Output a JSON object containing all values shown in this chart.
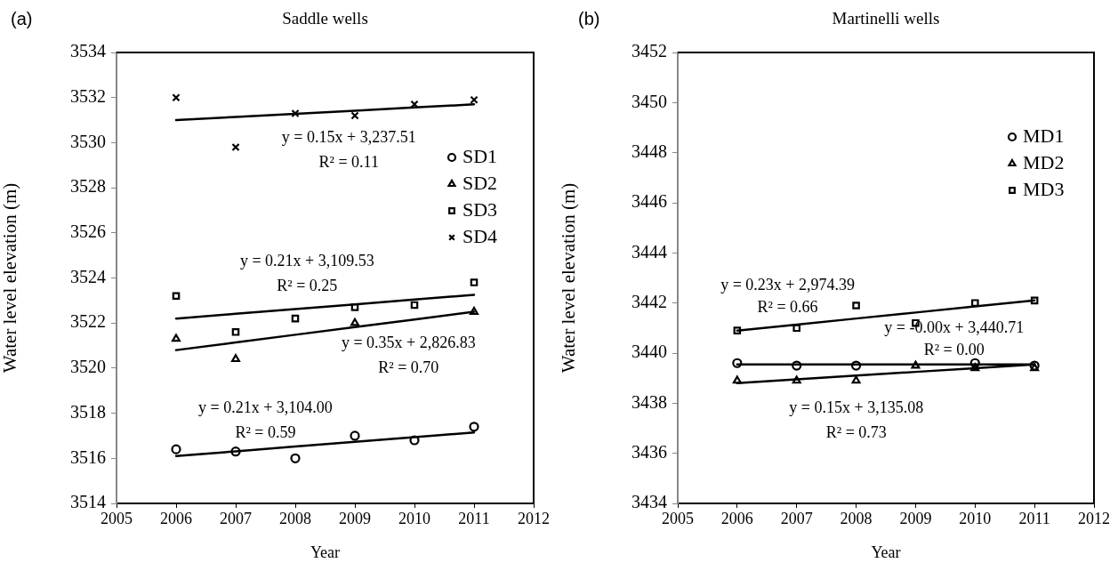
{
  "chart_data": [
    {
      "type": "scatter",
      "title": "Saddle wells",
      "xlabel": "Year",
      "ylabel": "Water level elevation (m)",
      "x": [
        2006,
        2007,
        2008,
        2009,
        2010,
        2011
      ],
      "xlim": [
        2005,
        2012
      ],
      "xticks": [
        2005,
        2006,
        2007,
        2008,
        2009,
        2010,
        2011,
        2012
      ],
      "ylim": [
        3514,
        3534
      ],
      "yticks": [
        3514,
        3516,
        3518,
        3520,
        3522,
        3524,
        3526,
        3528,
        3530,
        3532,
        3534
      ],
      "grid": false,
      "legend": "top right",
      "series": [
        {
          "name": "SD1",
          "color": "#000000",
          "marker": "circle",
          "values": [
            3516.4,
            3516.3,
            3516.0,
            3517.0,
            3516.8,
            3517.4
          ]
        },
        {
          "name": "SD2",
          "color": "#000000",
          "marker": "triangle",
          "values": [
            3521.3,
            3520.4,
            null,
            3522.0,
            null,
            3522.5
          ]
        },
        {
          "name": "SD3",
          "color": "#000000",
          "marker": "square",
          "values": [
            3523.2,
            3521.6,
            3522.2,
            3522.7,
            3522.8,
            3523.8
          ]
        },
        {
          "name": "SD4",
          "color": "#000000",
          "marker": "cross",
          "values": [
            3532.0,
            3529.8,
            3531.3,
            3531.2,
            3531.7,
            3531.9
          ]
        },
        {
          "type": "line",
          "color": "#000000",
          "marker": "none",
          "values": [
            3516.1,
            3516.31,
            3516.52,
            3516.73,
            3516.94,
            3517.15
          ]
        },
        {
          "type": "line",
          "color": "#000000",
          "marker": "none",
          "values": [
            3520.8,
            3521.14,
            3521.48,
            3521.82,
            3522.16,
            3522.5
          ]
        },
        {
          "type": "line",
          "color": "#000000",
          "marker": "none",
          "values": [
            3522.2,
            3522.41,
            3522.62,
            3522.83,
            3523.04,
            3523.25
          ]
        },
        {
          "type": "line",
          "color": "#000000",
          "marker": "none",
          "values": [
            3531.0,
            3531.14,
            3531.28,
            3531.42,
            3531.56,
            3531.7
          ]
        }
      ],
      "annotations": [
        "(a)",
        "y = 0.15x + 3,237.51",
        "R² = 0.11",
        "y = 0.21x + 3,109.53",
        "R² = 0.25",
        "y = 0.35x + 2,826.83",
        "R² = 0.70",
        "y = 0.21x + 3,104.00",
        "R² = 0.59"
      ]
    },
    {
      "type": "scatter",
      "title": "Martinelli wells",
      "xlabel": "Year",
      "ylabel": "Water level elevation (m)",
      "x": [
        2006,
        2007,
        2008,
        2009,
        2010,
        2011
      ],
      "xlim": [
        2005,
        2012
      ],
      "xticks": [
        2005,
        2006,
        2007,
        2008,
        2009,
        2010,
        2011,
        2012
      ],
      "ylim": [
        3434,
        3452
      ],
      "yticks": [
        3434,
        3436,
        3438,
        3440,
        3442,
        3444,
        3446,
        3448,
        3450,
        3452
      ],
      "grid": false,
      "legend": "top right",
      "series": [
        {
          "name": "MD1",
          "color": "#000000",
          "marker": "circle",
          "values": [
            3439.6,
            3439.5,
            3439.5,
            null,
            3439.6,
            3439.5
          ]
        },
        {
          "name": "MD2",
          "color": "#000000",
          "marker": "triangle",
          "values": [
            3438.9,
            3438.9,
            3438.9,
            3439.5,
            3439.4,
            3439.4
          ]
        },
        {
          "name": "MD3",
          "color": "#000000",
          "marker": "square",
          "values": [
            3440.9,
            3441.0,
            3441.9,
            3441.2,
            3442.0,
            3442.1
          ]
        },
        {
          "type": "line",
          "color": "#000000",
          "marker": "none",
          "values": [
            3439.55,
            3439.55,
            3439.55,
            3439.55,
            3439.55,
            3439.55
          ]
        },
        {
          "type": "line",
          "color": "#000000",
          "marker": "none",
          "values": [
            3438.8,
            3438.95,
            3439.1,
            3439.25,
            3439.4,
            3439.55
          ]
        },
        {
          "type": "line",
          "color": "#000000",
          "marker": "none",
          "values": [
            3440.9,
            3441.14,
            3441.38,
            3441.62,
            3441.86,
            3442.1
          ]
        }
      ],
      "annotations": [
        "(b)",
        "y = 0.23x + 2,974.39",
        "R² = 0.66",
        "y = -0.00x + 3,440.71",
        "R² = 0.00",
        "y = 0.15x + 3,135.08",
        "R² = 0.73"
      ]
    }
  ]
}
